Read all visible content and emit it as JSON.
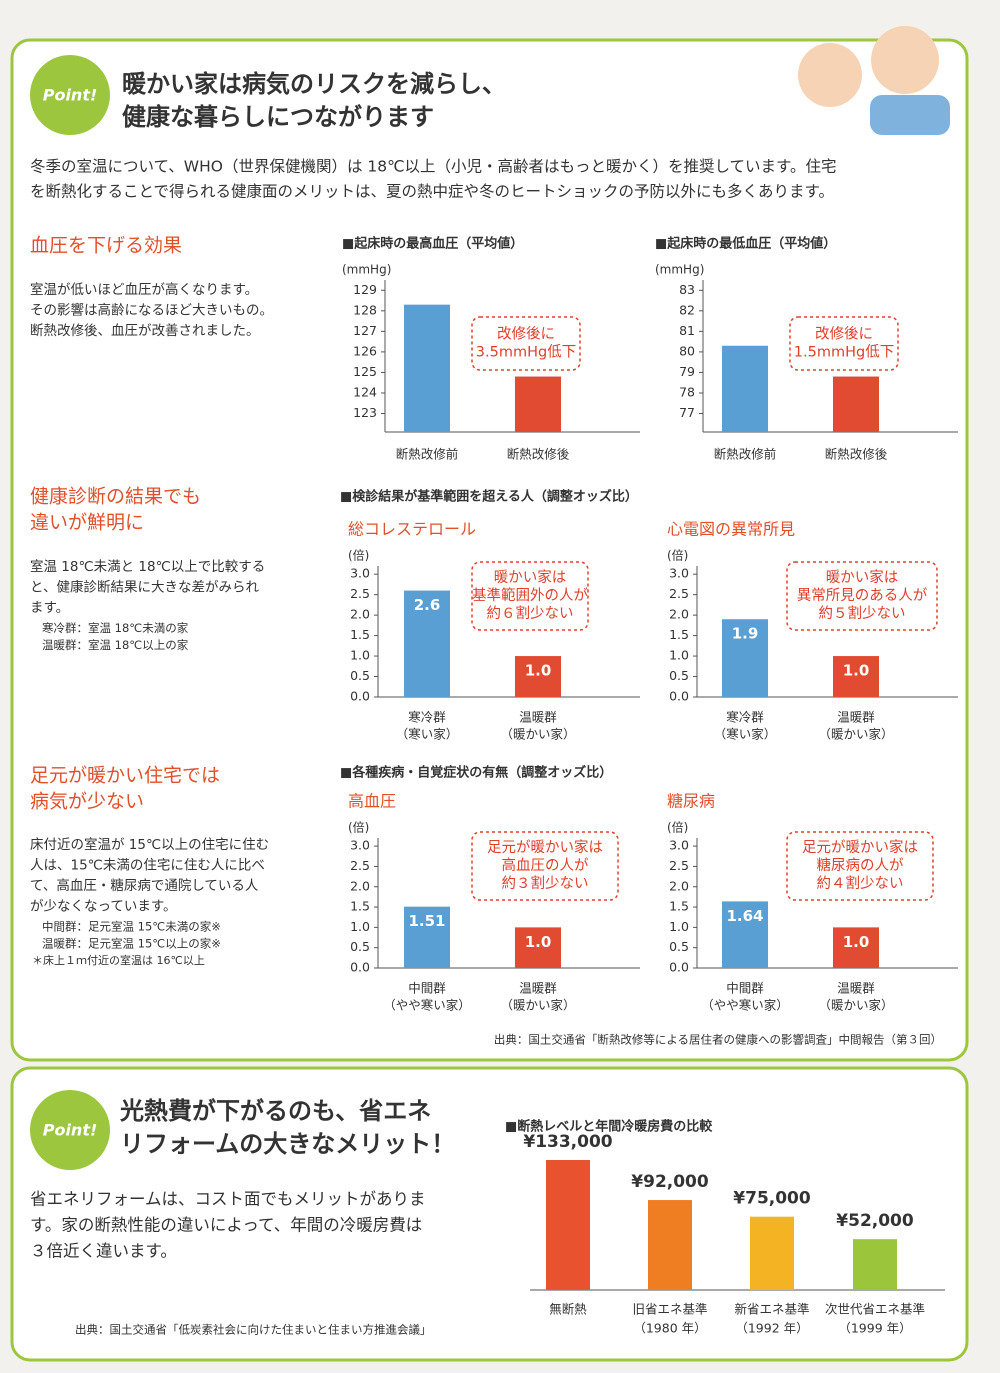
{
  "point1": {
    "badge": "Point!",
    "title": [
      "暖かい家は病気のリスクを減らし、",
      "健康な暮らしにつながります"
    ],
    "intro": [
      "冬季の室温について、WHO（世界保健機関）は 18℃以上（小児・高齢者はもっと暖かく）を推奨しています。住宅",
      "を断熱化することで得られる健康面のメリットは、夏の熱中症や冬のヒートショックの予防以外にも多くあります。"
    ]
  },
  "topics": [
    {
      "heading": [
        "血圧を下げる効果"
      ],
      "body": [
        "室温が低いほど血圧が高くなります。",
        "その影響は高齢になるほど大きいもの。",
        "断熱改修後、血圧が改善されました。"
      ]
    },
    {
      "heading": [
        "健康診断の結果でも",
        "違いが鮮明に"
      ],
      "body": [
        "室温 18℃未満と 18℃以上で比較する",
        "と、健康診断結果に大きな差がみられ",
        "ます。"
      ],
      "notes": [
        "寒冷群：室温 18℃未満の家",
        "温暖群：室温 18℃以上の家"
      ]
    },
    {
      "heading": [
        "足元が暖かい住宅では",
        "病気が少ない"
      ],
      "body": [
        "床付近の室温が 15℃以上の住宅に住む",
        "人は、15℃未満の住宅に住む人に比べ",
        "て、高血圧・糖尿病で通院している人",
        "が少なくなっています。"
      ],
      "notes": [
        "中間群：足元室温 15℃未満の家※",
        "温暖群：足元室温 15℃以上の家※"
      ],
      "footnote": "＊床上１ｍ付近の室温は 16℃以上"
    }
  ],
  "chart_groups": [
    "■検診結果が基準範囲を超える人（調整オッズ比）",
    "■各種疾病・自覚症状の有無（調整オッズ比）"
  ],
  "source1": "出典：国土交通省「断熱改修等による居住者の健康への影響調査」中間報告（第３回）",
  "point2": {
    "badge": "Point!",
    "title": [
      "光熱費が下がるのも、省エネ",
      "リフォームの大きなメリット！"
    ],
    "body": [
      "省エネリフォームは、コスト面でもメリットがありま",
      "す。家の断熱性能の違いによって、年間の冷暖房費は",
      "３倍近く違います。"
    ],
    "source": "出典：国土交通省「低炭素社会に向けた住まいと住まい方推進会議」"
  },
  "chart_data": [
    {
      "type": "bar",
      "title": "■起床時の最高血圧（平均値）",
      "unit_label": "(mmHg)",
      "categories": [
        "断熱改修前",
        "断熱改修後"
      ],
      "values": [
        128.3,
        124.8
      ],
      "colors": [
        "#5a9fd4",
        "#e14b32"
      ],
      "ylim": [
        122.1,
        129.5
      ],
      "yticks": [
        123,
        124,
        125,
        126,
        127,
        128,
        129
      ],
      "annotation": [
        "改修後に",
        "3.5mmHg低下"
      ]
    },
    {
      "type": "bar",
      "title": "■起床時の最低血圧（平均値）",
      "unit_label": "(mmHg)",
      "categories": [
        "断熱改修前",
        "断熱改修後"
      ],
      "values": [
        80.3,
        78.8
      ],
      "colors": [
        "#5a9fd4",
        "#e14b32"
      ],
      "ylim": [
        76.1,
        83.5
      ],
      "yticks": [
        77,
        78,
        79,
        80,
        81,
        82,
        83
      ],
      "annotation": [
        "改修後に",
        "1.5mmHg低下"
      ]
    },
    {
      "type": "bar",
      "title": "総コレステロール",
      "unit_label": "(倍)",
      "categories": [
        "寒冷群",
        "温暖群"
      ],
      "category_subtitles": [
        "（寒い家）",
        "（暖かい家）"
      ],
      "values": [
        2.6,
        1
      ],
      "value_labels": [
        "2.6",
        "1.0"
      ],
      "colors": [
        "#5a9fd4",
        "#e14b32"
      ],
      "ylim": [
        0,
        3.2
      ],
      "yticks": [
        {
          "value": 0,
          "label": "0.0"
        },
        0.5,
        {
          "value": 1,
          "label": "1.0"
        },
        1.5,
        {
          "value": 2,
          "label": "2.0"
        },
        2.5,
        {
          "value": 3,
          "label": "3.0"
        }
      ],
      "annotation": [
        "暖かい家は",
        "基準範囲外の人が",
        "約６割少ない"
      ]
    },
    {
      "type": "bar",
      "title": "心電図の異常所見",
      "unit_label": "(倍)",
      "categories": [
        "寒冷群",
        "温暖群"
      ],
      "category_subtitles": [
        "（寒い家）",
        "（暖かい家）"
      ],
      "values": [
        1.9,
        1
      ],
      "value_labels": [
        "1.9",
        "1.0"
      ],
      "colors": [
        "#5a9fd4",
        "#e14b32"
      ],
      "ylim": [
        0,
        3.2
      ],
      "yticks": [
        {
          "value": 0,
          "label": "0.0"
        },
        0.5,
        {
          "value": 1,
          "label": "1.0"
        },
        1.5,
        {
          "value": 2,
          "label": "2.0"
        },
        2.5,
        {
          "value": 3,
          "label": "3.0"
        }
      ],
      "annotation": [
        "暖かい家は",
        "異常所見のある人が",
        "約５割少ない"
      ]
    },
    {
      "type": "bar",
      "title": "高血圧",
      "unit_label": "(倍)",
      "categories": [
        "中間群",
        "温暖群"
      ],
      "category_subtitles": [
        "（やや寒い家）",
        "（暖かい家）"
      ],
      "values": [
        1.51,
        1
      ],
      "value_labels": [
        "1.51",
        "1.0"
      ],
      "colors": [
        "#5a9fd4",
        "#e14b32"
      ],
      "ylim": [
        0,
        3.2
      ],
      "yticks": [
        {
          "value": 0,
          "label": "0.0"
        },
        0.5,
        {
          "value": 1,
          "label": "1.0"
        },
        1.5,
        {
          "value": 2,
          "label": "2.0"
        },
        2.5,
        {
          "value": 3,
          "label": "3.0"
        }
      ],
      "annotation": [
        "足元が暖かい家は",
        "高血圧の人が",
        "約３割少ない"
      ]
    },
    {
      "type": "bar",
      "title": "糖尿病",
      "unit_label": "(倍)",
      "categories": [
        "中間群",
        "温暖群"
      ],
      "category_subtitles": [
        "（やや寒い家）",
        "（暖かい家）"
      ],
      "values": [
        1.64,
        1
      ],
      "value_labels": [
        "1.64",
        "1.0"
      ],
      "colors": [
        "#5a9fd4",
        "#e14b32"
      ],
      "ylim": [
        0,
        3.2
      ],
      "yticks": [
        {
          "value": 0,
          "label": "0.0"
        },
        0.5,
        {
          "value": 1,
          "label": "1.0"
        },
        1.5,
        {
          "value": 2,
          "label": "2.0"
        },
        2.5,
        {
          "value": 3,
          "label": "3.0"
        }
      ],
      "annotation": [
        "足元が暖かい家は",
        "糖尿病の人が",
        "約４割少ない"
      ]
    },
    {
      "type": "bar",
      "title": "■断熱レベルと年間冷暖房費の比較",
      "categories": [
        "無断熱",
        "旧省エネ基準",
        "新省エネ基準",
        "次世代省エネ基準"
      ],
      "category_subtitles": [
        null,
        "（1980 年）",
        "（1992 年）",
        "（1999 年）"
      ],
      "values": [
        133000,
        92000,
        75000,
        52000
      ],
      "value_labels": [
        "¥133,000",
        "¥92,000",
        "¥75,000",
        "¥52,000"
      ],
      "colors": [
        "#e8522e",
        "#ef7d22",
        "#f4b323",
        "#9bc53a"
      ]
    }
  ]
}
